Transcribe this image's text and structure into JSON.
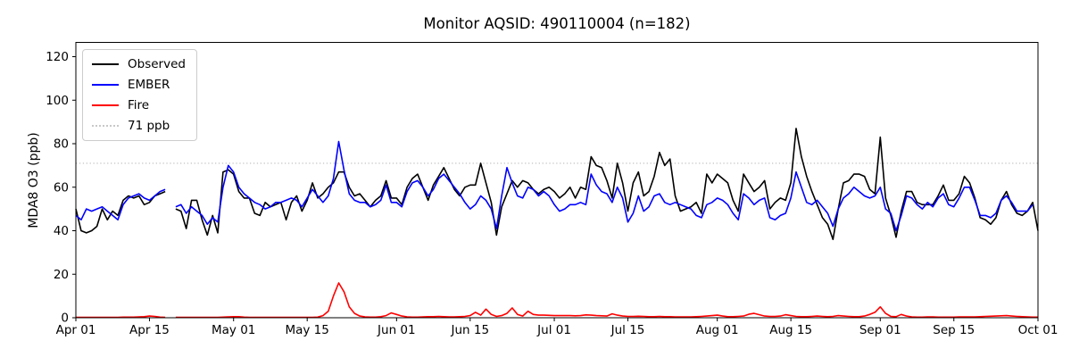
{
  "title": "Monitor AQSID: 490110004 (n=182)",
  "chart_data": {
    "type": "line",
    "title": "Monitor AQSID: 490110004 (n=182)",
    "xlabel": "",
    "ylabel": "MDA8 O3 (ppb)",
    "ylim": [
      0,
      126
    ],
    "yticks": [
      0,
      20,
      40,
      60,
      80,
      100,
      120
    ],
    "grid": false,
    "x_axis": {
      "unit": "day index from Apr 01",
      "domain_days": 183,
      "ticks": [
        {
          "day": 0,
          "label": "Apr 01"
        },
        {
          "day": 14,
          "label": "Apr 15"
        },
        {
          "day": 30,
          "label": "May 01"
        },
        {
          "day": 44,
          "label": "May 15"
        },
        {
          "day": 61,
          "label": "Jun 01"
        },
        {
          "day": 75,
          "label": "Jun 15"
        },
        {
          "day": 91,
          "label": "Jul 01"
        },
        {
          "day": 105,
          "label": "Jul 15"
        },
        {
          "day": 122,
          "label": "Aug 01"
        },
        {
          "day": 136,
          "label": "Aug 15"
        },
        {
          "day": 153,
          "label": "Sep 01"
        },
        {
          "day": 167,
          "label": "Sep 15"
        },
        {
          "day": 183,
          "label": "Oct 01"
        }
      ]
    },
    "threshold": {
      "value": 71,
      "label": "71 ppb",
      "color": "#c8c8c8",
      "style": "dotted"
    },
    "legend": {
      "position": "upper left",
      "entries": [
        "Observed",
        "EMBER",
        "Fire",
        "71 ppb"
      ]
    },
    "series": [
      {
        "name": "Observed",
        "color": "#000000",
        "values": [
          50,
          40,
          39,
          40,
          42,
          50,
          45,
          49,
          47,
          54,
          56,
          55,
          56,
          52,
          53,
          56,
          57,
          58,
          null,
          50,
          49,
          41,
          54,
          54,
          45,
          38,
          47,
          39,
          67,
          68,
          66,
          58,
          55,
          55,
          48,
          47,
          53,
          51,
          52,
          53,
          45,
          53,
          56,
          49,
          54,
          62,
          55,
          57,
          60,
          62,
          67,
          67,
          60,
          56,
          57,
          54,
          51,
          54,
          56,
          63,
          55,
          55,
          52,
          60,
          64,
          66,
          60,
          54,
          61,
          65,
          69,
          64,
          59,
          56,
          60,
          61,
          61,
          71,
          62,
          53,
          38,
          51,
          57,
          63,
          60,
          63,
          62,
          59,
          57,
          59,
          60,
          58,
          55,
          57,
          60,
          55,
          60,
          59,
          74,
          70,
          69,
          63,
          55,
          71,
          62,
          49,
          62,
          67,
          56,
          58,
          65,
          76,
          70,
          73,
          56,
          49,
          50,
          51,
          53,
          48,
          66,
          62,
          66,
          64,
          62,
          54,
          49,
          66,
          62,
          58,
          60,
          63,
          50,
          53,
          55,
          54,
          62,
          87,
          74,
          65,
          58,
          52,
          46,
          43,
          36,
          50,
          62,
          63,
          66,
          66,
          65,
          59,
          57,
          83,
          55,
          47,
          37,
          49,
          58,
          58,
          53,
          52,
          52,
          52,
          56,
          61,
          54,
          54,
          57,
          65,
          62,
          55,
          46,
          45,
          43,
          46,
          54,
          58,
          52,
          48,
          47,
          49,
          53,
          40
        ]
      },
      {
        "name": "EMBER",
        "color": "#0000ff",
        "values": [
          47,
          45,
          50,
          49,
          50,
          51,
          49,
          47,
          45,
          52,
          55,
          56,
          57,
          55,
          54,
          56,
          58,
          59,
          null,
          51,
          52,
          48,
          51,
          49,
          47,
          43,
          46,
          44,
          60,
          70,
          67,
          60,
          57,
          55,
          53,
          52,
          50,
          51,
          53,
          53,
          54,
          55,
          54,
          51,
          55,
          59,
          56,
          53,
          56,
          64,
          81,
          68,
          57,
          54,
          53,
          53,
          51,
          52,
          54,
          61,
          53,
          53,
          51,
          58,
          62,
          63,
          60,
          56,
          59,
          64,
          66,
          63,
          60,
          57,
          53,
          50,
          52,
          56,
          54,
          50,
          41,
          56,
          69,
          62,
          56,
          55,
          60,
          59,
          56,
          58,
          56,
          52,
          49,
          50,
          52,
          52,
          53,
          52,
          66,
          61,
          58,
          57,
          53,
          60,
          55,
          44,
          48,
          56,
          49,
          51,
          56,
          57,
          53,
          52,
          53,
          52,
          51,
          50,
          47,
          46,
          52,
          53,
          55,
          54,
          52,
          48,
          45,
          57,
          55,
          52,
          54,
          55,
          46,
          45,
          47,
          48,
          55,
          67,
          60,
          53,
          52,
          54,
          51,
          48,
          42,
          50,
          55,
          57,
          60,
          58,
          56,
          55,
          56,
          60,
          50,
          48,
          40,
          47,
          56,
          55,
          52,
          50,
          53,
          51,
          55,
          57,
          52,
          51,
          55,
          60,
          60,
          54,
          47,
          47,
          46,
          48,
          54,
          56,
          53,
          49,
          49,
          49,
          52,
          null
        ]
      },
      {
        "name": "Fire",
        "color": "#ff0000",
        "values": [
          0.2,
          0.2,
          0.2,
          0.2,
          0.2,
          0.2,
          0.2,
          0.2,
          0.2,
          0.3,
          0.3,
          0.3,
          0.4,
          0.5,
          0.8,
          0.6,
          0.3,
          0.2,
          null,
          0.2,
          0.2,
          0.2,
          0.2,
          0.2,
          0.2,
          0.2,
          0.2,
          0.2,
          0.3,
          0.4,
          0.5,
          0.5,
          0.3,
          0.2,
          0.2,
          0.2,
          0.2,
          0.2,
          0.2,
          0.2,
          0.2,
          0.2,
          0.2,
          0.2,
          0.2,
          0.2,
          0.3,
          1,
          3,
          10,
          16,
          12,
          5,
          2,
          0.8,
          0.4,
          0.3,
          0.3,
          0.5,
          1,
          2.2,
          1.5,
          0.8,
          0.4,
          0.3,
          0.3,
          0.4,
          0.5,
          0.5,
          0.6,
          0.5,
          0.4,
          0.4,
          0.5,
          0.6,
          1,
          2.5,
          1.2,
          4,
          1.5,
          0.6,
          1,
          2,
          4.5,
          1.5,
          0.8,
          3,
          1.5,
          1.2,
          1.2,
          1.1,
          1,
          1,
          1,
          1,
          0.9,
          1,
          1.3,
          1.2,
          1,
          0.9,
          0.8,
          1.8,
          1.2,
          0.8,
          0.6,
          0.6,
          0.7,
          0.6,
          0.5,
          0.5,
          0.6,
          0.5,
          0.5,
          0.4,
          0.4,
          0.4,
          0.4,
          0.5,
          0.6,
          0.8,
          1,
          1.2,
          0.8,
          0.5,
          0.5,
          0.6,
          0.8,
          1.6,
          2,
          1.4,
          0.8,
          0.6,
          0.6,
          0.8,
          1.4,
          1,
          0.6,
          0.5,
          0.5,
          0.6,
          0.8,
          0.6,
          0.5,
          0.6,
          1,
          0.8,
          0.6,
          0.5,
          0.5,
          0.8,
          1.5,
          2.5,
          5,
          2,
          0.6,
          0.5,
          1.5,
          0.8,
          0.4,
          0.3,
          0.3,
          0.4,
          0.4,
          0.3,
          0.3,
          0.3,
          0.3,
          0.4,
          0.4,
          0.4,
          0.4,
          0.5,
          0.6,
          0.7,
          0.8,
          0.9,
          1,
          0.8,
          0.6,
          0.5,
          0.4,
          0.3,
          0.3
        ]
      }
    ]
  }
}
